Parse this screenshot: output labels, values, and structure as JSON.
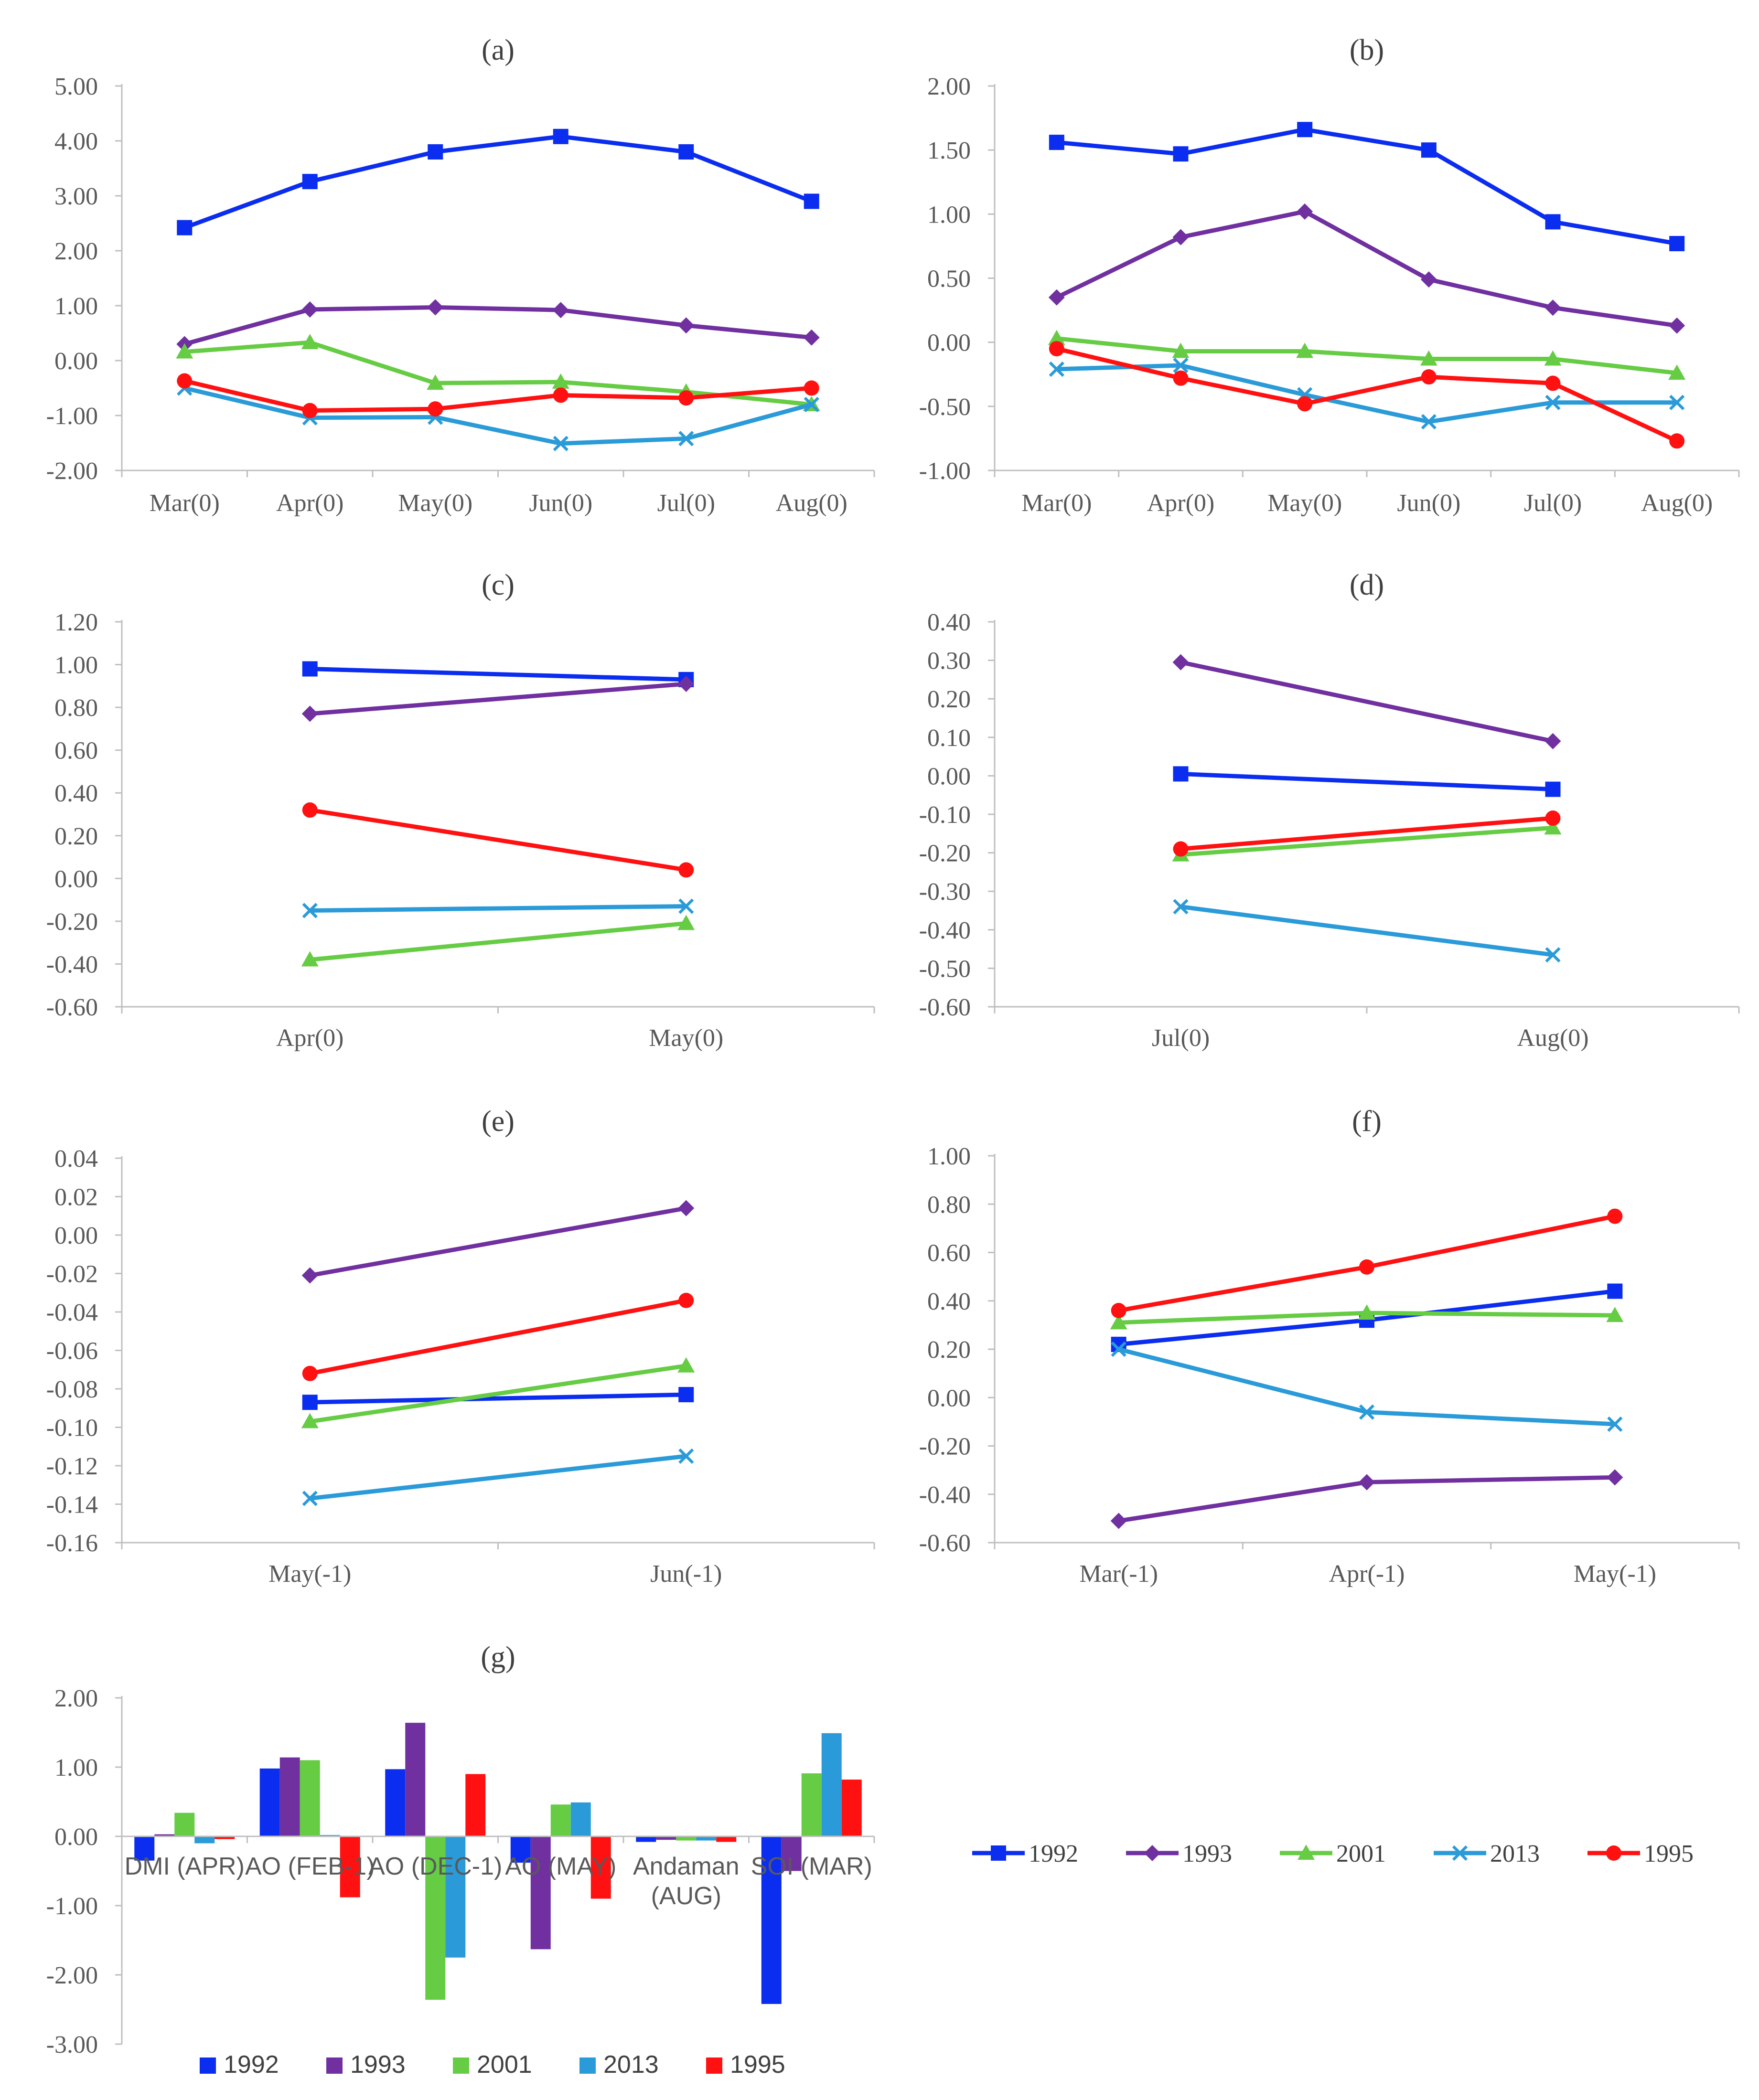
{
  "colors": {
    "1992": "#0b2df0",
    "1993": "#7030a0",
    "2001": "#66cc44",
    "2013": "#2a9bd8",
    "1995": "#ff1111",
    "axis": "#bfbfbf",
    "text": "#595959"
  },
  "line_legend": [
    {
      "year": "1992",
      "marker": "square"
    },
    {
      "year": "1993",
      "marker": "diamond"
    },
    {
      "year": "2001",
      "marker": "triangle"
    },
    {
      "year": "2013",
      "marker": "x"
    },
    {
      "year": "1995",
      "marker": "circle"
    }
  ],
  "bar_legend": [
    "1992",
    "1993",
    "2001",
    "2013",
    "1995"
  ],
  "chart_data": [
    {
      "id": "a",
      "type": "line",
      "title": "(a)",
      "categories": [
        "Mar(0)",
        "Apr(0)",
        "May(0)",
        "Jun(0)",
        "Jul(0)",
        "Aug(0)"
      ],
      "ylim": [
        -2,
        5
      ],
      "ystep": 1,
      "ydec": 2,
      "series": [
        {
          "name": "1992",
          "marker": "square",
          "values": [
            2.42,
            3.26,
            3.8,
            4.08,
            3.8,
            2.9
          ]
        },
        {
          "name": "1993",
          "marker": "diamond",
          "values": [
            0.3,
            0.93,
            0.97,
            0.92,
            0.64,
            0.42
          ]
        },
        {
          "name": "2001",
          "marker": "triangle",
          "values": [
            0.16,
            0.33,
            -0.41,
            -0.39,
            -0.57,
            -0.8
          ]
        },
        {
          "name": "2013",
          "marker": "x",
          "values": [
            -0.5,
            -1.04,
            -1.03,
            -1.51,
            -1.42,
            -0.8
          ]
        },
        {
          "name": "1995",
          "marker": "circle",
          "values": [
            -0.37,
            -0.91,
            -0.88,
            -0.63,
            -0.68,
            -0.5
          ]
        }
      ]
    },
    {
      "id": "b",
      "type": "line",
      "title": "(b)",
      "categories": [
        "Mar(0)",
        "Apr(0)",
        "May(0)",
        "Jun(0)",
        "Jul(0)",
        "Aug(0)"
      ],
      "ylim": [
        -1,
        2
      ],
      "ystep": 0.5,
      "ydec": 2,
      "series": [
        {
          "name": "1992",
          "marker": "square",
          "values": [
            1.56,
            1.47,
            1.66,
            1.5,
            0.94,
            0.77
          ]
        },
        {
          "name": "1993",
          "marker": "diamond",
          "values": [
            0.35,
            0.82,
            1.02,
            0.49,
            0.27,
            0.13
          ]
        },
        {
          "name": "2001",
          "marker": "triangle",
          "values": [
            0.03,
            -0.07,
            -0.07,
            -0.13,
            -0.13,
            -0.24
          ]
        },
        {
          "name": "2013",
          "marker": "x",
          "values": [
            -0.21,
            -0.18,
            -0.41,
            -0.62,
            -0.47,
            -0.47
          ]
        },
        {
          "name": "1995",
          "marker": "circle",
          "values": [
            -0.05,
            -0.28,
            -0.48,
            -0.27,
            -0.32,
            -0.77
          ]
        }
      ]
    },
    {
      "id": "c",
      "type": "line",
      "title": "(c)",
      "categories": [
        "Apr(0)",
        "May(0)"
      ],
      "ylim": [
        -0.6,
        1.2
      ],
      "ystep": 0.2,
      "ydec": 2,
      "series": [
        {
          "name": "1992",
          "marker": "square",
          "values": [
            0.98,
            0.93
          ]
        },
        {
          "name": "1993",
          "marker": "diamond",
          "values": [
            0.77,
            0.91
          ]
        },
        {
          "name": "2001",
          "marker": "triangle",
          "values": [
            -0.38,
            -0.21
          ]
        },
        {
          "name": "2013",
          "marker": "x",
          "values": [
            -0.15,
            -0.13
          ]
        },
        {
          "name": "1995",
          "marker": "circle",
          "values": [
            0.32,
            0.04
          ]
        }
      ]
    },
    {
      "id": "d",
      "type": "line",
      "title": "(d)",
      "categories": [
        "Jul(0)",
        "Aug(0)"
      ],
      "ylim": [
        -0.6,
        0.4
      ],
      "ystep": 0.1,
      "ydec": 2,
      "series": [
        {
          "name": "1992",
          "marker": "square",
          "values": [
            0.005,
            -0.035
          ]
        },
        {
          "name": "1993",
          "marker": "diamond",
          "values": [
            0.295,
            0.09
          ]
        },
        {
          "name": "2001",
          "marker": "triangle",
          "values": [
            -0.205,
            -0.135
          ]
        },
        {
          "name": "2013",
          "marker": "x",
          "values": [
            -0.34,
            -0.465
          ]
        },
        {
          "name": "1995",
          "marker": "circle",
          "values": [
            -0.19,
            -0.11
          ]
        }
      ]
    },
    {
      "id": "e",
      "type": "line",
      "title": "(e)",
      "categories": [
        "May(-1)",
        "Jun(-1)"
      ],
      "ylim": [
        -0.16,
        0.04
      ],
      "ystep": 0.02,
      "ydec": 2,
      "series": [
        {
          "name": "1992",
          "marker": "square",
          "values": [
            -0.087,
            -0.083
          ]
        },
        {
          "name": "1993",
          "marker": "diamond",
          "values": [
            -0.021,
            0.014
          ]
        },
        {
          "name": "2001",
          "marker": "triangle",
          "values": [
            -0.097,
            -0.068
          ]
        },
        {
          "name": "2013",
          "marker": "x",
          "values": [
            -0.137,
            -0.115
          ]
        },
        {
          "name": "1995",
          "marker": "circle",
          "values": [
            -0.072,
            -0.034
          ]
        }
      ]
    },
    {
      "id": "f",
      "type": "line",
      "title": "(f)",
      "categories": [
        "Mar(-1)",
        "Apr(-1)",
        "May(-1)"
      ],
      "ylim": [
        -0.6,
        1.0
      ],
      "ystep": 0.2,
      "ydec": 2,
      "series": [
        {
          "name": "1992",
          "marker": "square",
          "values": [
            0.22,
            0.32,
            0.44
          ]
        },
        {
          "name": "1993",
          "marker": "diamond",
          "values": [
            -0.51,
            -0.35,
            -0.33
          ]
        },
        {
          "name": "2001",
          "marker": "triangle",
          "values": [
            0.31,
            0.35,
            0.34
          ]
        },
        {
          "name": "2013",
          "marker": "x",
          "values": [
            0.2,
            -0.06,
            -0.11
          ]
        },
        {
          "name": "1995",
          "marker": "circle",
          "values": [
            0.36,
            0.54,
            0.75
          ]
        }
      ]
    },
    {
      "id": "g",
      "type": "bar",
      "title": "(g)",
      "categories": [
        "DMI (APR)",
        "AO (FEB-1)",
        "AO (DEC-1)",
        "AO (MAY)",
        "Andaman (AUG)",
        "SOI (MAR)"
      ],
      "ylim": [
        -3,
        2
      ],
      "ystep": 1,
      "ydec": 2,
      "series": [
        {
          "name": "1992",
          "values": [
            -0.35,
            0.98,
            0.97,
            -0.38,
            -0.08,
            -2.42
          ]
        },
        {
          "name": "1993",
          "values": [
            0.03,
            1.14,
            1.64,
            -1.63,
            -0.05,
            -0.5
          ]
        },
        {
          "name": "2001",
          "values": [
            0.34,
            1.1,
            -2.36,
            0.46,
            -0.06,
            0.91
          ]
        },
        {
          "name": "2013",
          "values": [
            -0.1,
            0.02,
            -1.75,
            0.49,
            -0.06,
            1.49
          ]
        },
        {
          "name": "1995",
          "values": [
            -0.04,
            -0.88,
            0.9,
            -0.9,
            -0.08,
            0.82
          ]
        }
      ]
    }
  ]
}
